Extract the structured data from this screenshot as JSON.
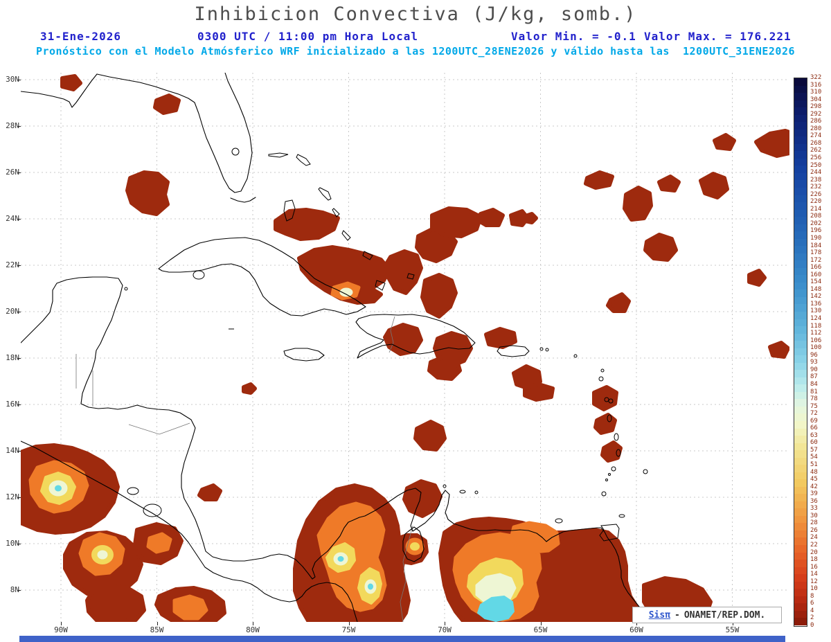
{
  "header": {
    "title": "Inhibicion Convectiva (J/kg, somb.)",
    "date": "31-Ene-2026",
    "time": "0300 UTC / 11:00 pm Hora Local",
    "min_text": "Valor Min. = -0.1",
    "max_text": "Valor Max. = 176.221",
    "forecast": "Pronóstico con el Modelo Atmósferico WRF inicializado a las 1200UTC_28ENE2026 y válido hasta las  1200UTC_31ENE2026"
  },
  "axes": {
    "lat_ticks": [
      "30N",
      "28N",
      "26N",
      "24N",
      "22N",
      "20N",
      "18N",
      "16N",
      "14N",
      "12N",
      "10N",
      "8N"
    ],
    "lon_ticks": [
      "90W",
      "85W",
      "80W",
      "75W",
      "70W",
      "65W",
      "60W",
      "55W"
    ]
  },
  "colorbar": {
    "border_color": "#333333",
    "label_color": "#8b2a10",
    "gradient_stops": [
      {
        "t": 0.0,
        "c": "#0a0a3c"
      },
      {
        "t": 0.06,
        "c": "#0c1e6e"
      },
      {
        "t": 0.16,
        "c": "#1440a0"
      },
      {
        "t": 0.28,
        "c": "#2468b8"
      },
      {
        "t": 0.38,
        "c": "#3c90cc"
      },
      {
        "t": 0.46,
        "c": "#62b6dc"
      },
      {
        "t": 0.52,
        "c": "#8cd4e8"
      },
      {
        "t": 0.565,
        "c": "#bcecec"
      },
      {
        "t": 0.6,
        "c": "#e4f6e0"
      },
      {
        "t": 0.635,
        "c": "#f2f6c8"
      },
      {
        "t": 0.68,
        "c": "#f2e492"
      },
      {
        "t": 0.745,
        "c": "#f2c85e"
      },
      {
        "t": 0.81,
        "c": "#f09840"
      },
      {
        "t": 0.865,
        "c": "#e8682a"
      },
      {
        "t": 0.915,
        "c": "#d8401c"
      },
      {
        "t": 0.96,
        "c": "#b82a12"
      },
      {
        "t": 1.0,
        "c": "#8c1c0a"
      }
    ]
  },
  "branding": {
    "left": "Sisπ",
    "separator": "-",
    "right": "ONAMET/REP.DOM."
  },
  "colors": {
    "title": "#4d4d4d",
    "header_blue": "#2222cc",
    "header_cyan": "#00a8e8",
    "cin_dark_red": "#9e2a0e",
    "cin_orange": "#ef7a28",
    "cin_yellow": "#f2d95c",
    "cin_pale": "#eef6d4",
    "cin_cyan": "#62d8e6",
    "footer_bar": "#3f62c8"
  },
  "chart_data": {
    "type": "heatmap",
    "subtype": "filled-contour weather map (shaded)",
    "title": "Inhibicion Convectiva (J/kg, somb.)",
    "units": "J/kg",
    "model": "WRF",
    "run_init": "1200UTC_28ENE2026",
    "valid_until": "1200UTC_31ENE2026",
    "map_date": "31-Ene-2026",
    "map_valid_time": "0300 UTC / 11:00 pm Hora Local",
    "value_min": -0.1,
    "value_max": 176.221,
    "lat_ticks_deg_n": [
      30,
      28,
      26,
      24,
      22,
      20,
      18,
      16,
      14,
      12,
      10,
      8
    ],
    "lon_ticks_deg_w": [
      90,
      85,
      80,
      75,
      70,
      65,
      60,
      55
    ],
    "grid": "dashed graticule every 2 deg lat / 5 deg lon",
    "legend_position": "right vertical colorbar",
    "contour_levels": [
      0,
      2,
      4,
      6,
      8,
      10,
      12,
      14,
      16,
      18,
      20,
      22,
      24,
      26,
      28,
      30,
      33,
      36,
      39,
      42,
      45,
      48,
      51,
      54,
      57,
      60,
      63,
      66,
      69,
      72,
      75,
      78,
      81,
      84,
      87,
      90,
      93,
      96,
      100,
      106,
      112,
      118,
      124,
      130,
      136,
      142,
      148,
      154,
      160,
      166,
      172,
      178,
      184,
      190,
      196,
      202,
      208,
      214,
      220,
      226,
      232,
      238,
      244,
      250,
      256,
      262,
      268,
      274,
      280,
      286,
      292,
      298,
      304,
      310,
      316,
      322
    ],
    "regions": [
      {
        "area": "Pacific waters off Nicaragua / Costa Rica",
        "character": "maximum with pale core",
        "approx_peak_jkg": 120
      },
      {
        "area": "northern Colombia and western Venezuela",
        "character": "broad maximum with yellow/white/cyan cores",
        "approx_peak_jkg": 176
      },
      {
        "area": "eastern Venezuela / Orinoco delta",
        "character": "broad maximum with cyan core near coast",
        "approx_peak_jkg": 160
      },
      {
        "area": "central Bahamas",
        "character": "small embedded bright core",
        "approx_peak_jkg": 100
      },
      {
        "area": "Gulf of Mexico, Cuba, Hispaniola vicinity, subtropical Atlantic",
        "character": "widespread scattered dark-red patches",
        "approx_range_jkg": [
          2,
          10
        ]
      }
    ]
  }
}
